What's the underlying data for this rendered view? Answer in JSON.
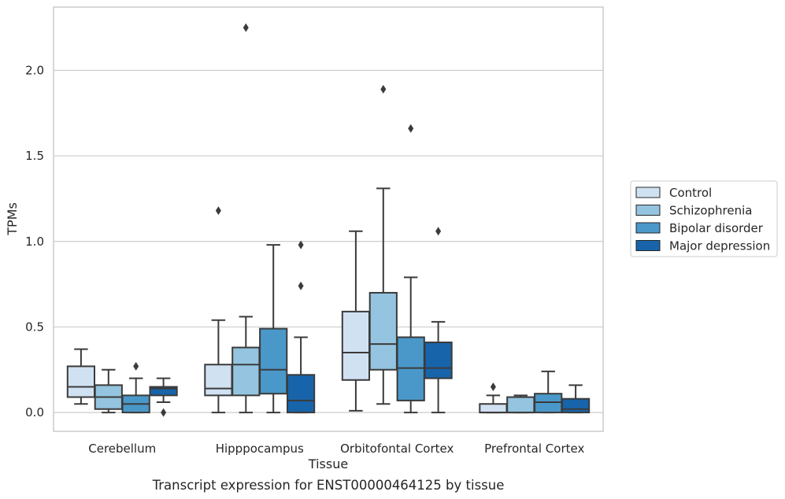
{
  "chart_data": {
    "type": "boxplot",
    "caption": "Transcript expression for ENST00000464125 by tissue",
    "xlabel": "Tissue",
    "ylabel": "TPMs",
    "ylim": [
      -0.11,
      2.37
    ],
    "yticks": [
      0.0,
      0.5,
      1.0,
      1.5,
      2.0
    ],
    "ytick_labels": [
      "0.0",
      "0.5",
      "1.0",
      "1.5",
      "2.0"
    ],
    "grid": "horizontal",
    "legend_position": "right",
    "categories": [
      "Cerebellum",
      "Hipppocampus",
      "Orbitofontal Cortex",
      "Prefrontal Cortex"
    ],
    "series": [
      {
        "name": "Control",
        "color": "#d0e1f2",
        "boxes": [
          {
            "whislo": 0.05,
            "q1": 0.09,
            "med": 0.15,
            "q3": 0.27,
            "whishi": 0.37,
            "fliers": []
          },
          {
            "whislo": 0.0,
            "q1": 0.1,
            "med": 0.14,
            "q3": 0.28,
            "whishi": 0.54,
            "fliers": [
              1.18
            ]
          },
          {
            "whislo": 0.01,
            "q1": 0.19,
            "med": 0.35,
            "q3": 0.59,
            "whishi": 1.06,
            "fliers": []
          },
          {
            "whislo": 0.0,
            "q1": 0.0,
            "med": 0.0,
            "q3": 0.05,
            "whishi": 0.1,
            "fliers": [
              0.15
            ]
          }
        ]
      },
      {
        "name": "Schizophrenia",
        "color": "#94c4df",
        "boxes": [
          {
            "whislo": 0.0,
            "q1": 0.02,
            "med": 0.09,
            "q3": 0.16,
            "whishi": 0.25,
            "fliers": []
          },
          {
            "whislo": 0.0,
            "q1": 0.1,
            "med": 0.28,
            "q3": 0.38,
            "whishi": 0.56,
            "fliers": [
              2.25
            ]
          },
          {
            "whislo": 0.05,
            "q1": 0.25,
            "med": 0.4,
            "q3": 0.7,
            "whishi": 1.31,
            "fliers": [
              1.89
            ]
          },
          {
            "whislo": 0.0,
            "q1": 0.0,
            "med": 0.0,
            "q3": 0.09,
            "whishi": 0.1,
            "fliers": []
          }
        ]
      },
      {
        "name": "Bipolar disorder",
        "color": "#4a98c9",
        "boxes": [
          {
            "whislo": 0.0,
            "q1": 0.0,
            "med": 0.05,
            "q3": 0.1,
            "whishi": 0.2,
            "fliers": [
              0.27
            ]
          },
          {
            "whislo": 0.0,
            "q1": 0.11,
            "med": 0.25,
            "q3": 0.49,
            "whishi": 0.98,
            "fliers": []
          },
          {
            "whislo": 0.0,
            "q1": 0.07,
            "med": 0.26,
            "q3": 0.44,
            "whishi": 0.79,
            "fliers": [
              1.66
            ]
          },
          {
            "whislo": 0.0,
            "q1": 0.0,
            "med": 0.06,
            "q3": 0.11,
            "whishi": 0.24,
            "fliers": []
          }
        ]
      },
      {
        "name": "Major depression",
        "color": "#1764ab",
        "boxes": [
          {
            "whislo": 0.06,
            "q1": 0.1,
            "med": 0.14,
            "q3": 0.15,
            "whishi": 0.2,
            "fliers": [
              0.0
            ]
          },
          {
            "whislo": 0.0,
            "q1": 0.0,
            "med": 0.07,
            "q3": 0.22,
            "whishi": 0.44,
            "fliers": [
              0.74,
              0.98
            ]
          },
          {
            "whislo": 0.0,
            "q1": 0.2,
            "med": 0.26,
            "q3": 0.41,
            "whishi": 0.53,
            "fliers": [
              1.06
            ]
          },
          {
            "whislo": 0.0,
            "q1": 0.0,
            "med": 0.02,
            "q3": 0.08,
            "whishi": 0.16,
            "fliers": []
          }
        ]
      }
    ]
  }
}
